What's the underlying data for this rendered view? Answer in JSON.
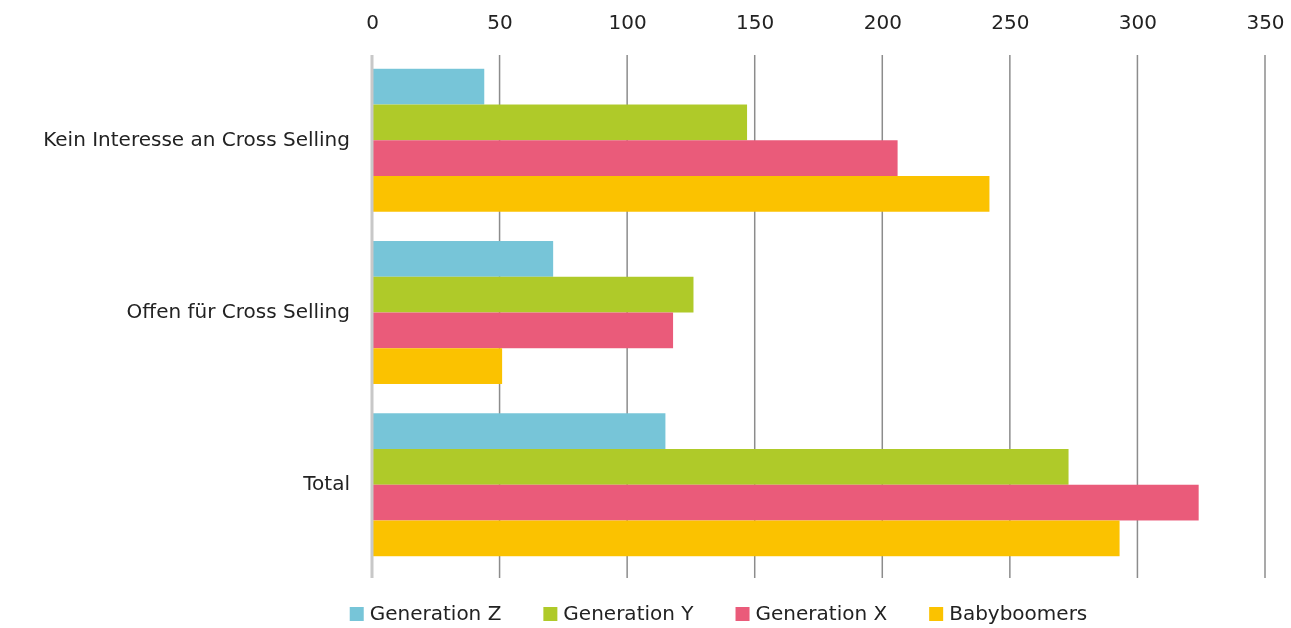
{
  "chart_data": {
    "type": "bar",
    "orientation": "horizontal",
    "categories": [
      "Kein Interesse an Cross Selling",
      "Offen für Cross Selling",
      "Total"
    ],
    "series": [
      {
        "name": "Generation Z",
        "color": "#77c5d8",
        "values": [
          44,
          71,
          115
        ]
      },
      {
        "name": "Generation Y",
        "color": "#afca29",
        "values": [
          147,
          126,
          273
        ]
      },
      {
        "name": "Generation X",
        "color": "#ea5b7a",
        "values": [
          206,
          118,
          324
        ]
      },
      {
        "name": "Babyboomers",
        "color": "#fbc200",
        "values": [
          242,
          51,
          293
        ]
      }
    ],
    "xlim": [
      0,
      350
    ],
    "xticks": [
      0,
      50,
      100,
      150,
      200,
      250,
      300,
      350
    ],
    "grid": "x",
    "legend": "bottom"
  }
}
